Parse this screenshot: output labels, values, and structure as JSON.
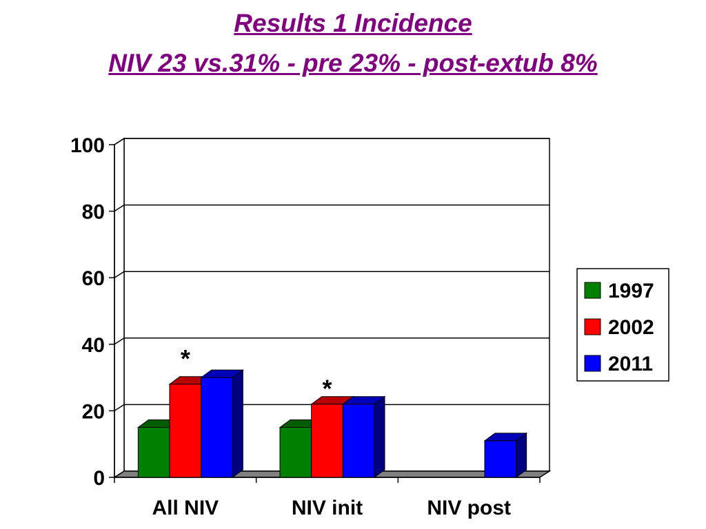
{
  "slide": {
    "title_line1": "Results 1 Incidence",
    "title_line2": "NIV 23 vs.31% - pre 23% - post-extub 8%"
  },
  "chart_data": {
    "type": "bar",
    "style": "3d-clustered",
    "categories": [
      "All NIV",
      "NIV init",
      "NIV post"
    ],
    "series": [
      {
        "name": "1997",
        "color": "#008000",
        "values": [
          15,
          15,
          null
        ]
      },
      {
        "name": "2002",
        "color": "#FF0000",
        "values": [
          28,
          22,
          null
        ]
      },
      {
        "name": "2011",
        "color": "#0000FF",
        "values": [
          30,
          22,
          11
        ]
      }
    ],
    "ylim": [
      0,
      100
    ],
    "yticks": [
      0,
      20,
      40,
      60,
      80,
      100
    ],
    "grid": true,
    "legend": "right",
    "annotations": [
      {
        "text": "*",
        "category": "All NIV",
        "y": 36
      },
      {
        "text": "*",
        "category": "NIV init",
        "y": 27
      }
    ]
  }
}
